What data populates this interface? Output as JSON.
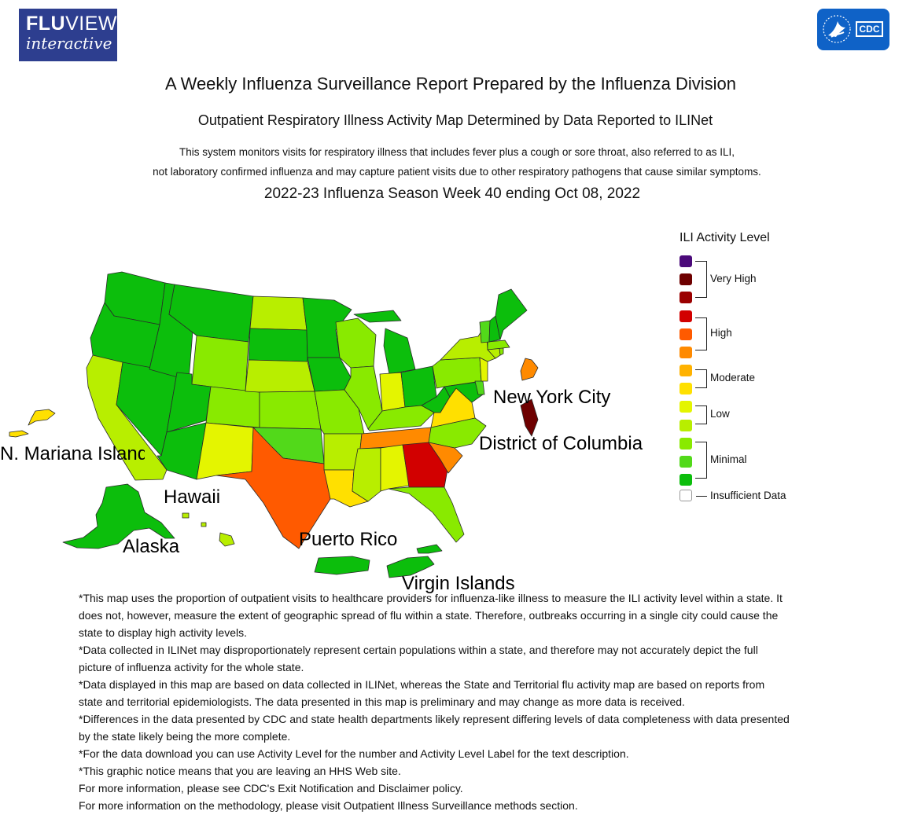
{
  "logos": {
    "fluview_line1_bold": "FLU",
    "fluview_line1_rest": "VIEW",
    "fluview_line2": "interactive",
    "cdc_text": "CDC",
    "cdc_icon": "hhs-eagle-icon"
  },
  "header": {
    "title": "A Weekly Influenza Surveillance Report Prepared by the Influenza Division",
    "subtitle": "Outpatient Respiratory Illness Activity Map Determined by Data Reported to ILINet",
    "description_line1": "This system monitors visits for respiratory illness that includes fever plus a cough or sore throat, also referred to as ILI,",
    "description_line2": "not laboratory confirmed influenza and may capture patient visits due to other respiratory pathogens that cause similar symptoms.",
    "week": "2022-23 Influenza Season Week 40 ending Oct 08, 2022"
  },
  "legend": {
    "title": "ILI Activity Level",
    "swatches": [
      {
        "level": 13,
        "color": "#4b0a7a"
      },
      {
        "level": 12,
        "color": "#6e0000"
      },
      {
        "level": 11,
        "color": "#9b0000"
      },
      {
        "level": 10,
        "color": "#d20000"
      },
      {
        "level": 9,
        "color": "#ff5a00"
      },
      {
        "level": 8,
        "color": "#ff8a00"
      },
      {
        "level": 7,
        "color": "#ffb200"
      },
      {
        "level": 6,
        "color": "#ffe000"
      },
      {
        "level": 5,
        "color": "#e4f500"
      },
      {
        "level": 4,
        "color": "#b8ee00"
      },
      {
        "level": 3,
        "color": "#89ea00"
      },
      {
        "level": 2,
        "color": "#52d91a"
      },
      {
        "level": 1,
        "color": "#0cbe0c"
      }
    ],
    "categories": [
      "Very High",
      "High",
      "Moderate",
      "Low",
      "Minimal"
    ],
    "insufficient_label": "Insufficient Data",
    "insufficient_color": "#ffffff"
  },
  "map_labels": {
    "nyc": "New York City",
    "dc": "District of Columbia",
    "mariana": "N. Mariana Islands",
    "hawaii": "Hawaii",
    "alaska": "Alaska",
    "puerto_rico": "Puerto Rico",
    "virgin_islands": "Virgin Islands"
  },
  "activity_levels": {
    "WA": 1,
    "OR": 1,
    "CA": 4,
    "NV": 1,
    "ID": 1,
    "MT": 1,
    "WY": 3,
    "UT": 1,
    "AZ": 1,
    "CO": 3,
    "NM": 5,
    "ND": 4,
    "SD": 1,
    "NE": 4,
    "KS": 3,
    "OK": 2,
    "TX": 9,
    "MN": 1,
    "IA": 1,
    "MO": 3,
    "AR": 4,
    "LA": 6,
    "WI": 3,
    "IL": 3,
    "MS": 4,
    "MI": 1,
    "IN": 5,
    "KY": 3,
    "TN": 8,
    "AL": 5,
    "GA": 10,
    "FL": 3,
    "OH": 1,
    "WV": 1,
    "VA": 6,
    "NC": 3,
    "SC": 8,
    "PA": 3,
    "NY": 4,
    "NJ": 5,
    "DE": 2,
    "MD": 1,
    "CT": 4,
    "RI": 3,
    "MA": 3,
    "VT": 2,
    "NH": 1,
    "ME": 1,
    "NYC": 8,
    "DC": 12,
    "AK": 1,
    "HI": 4,
    "MP": 6,
    "PR": 1,
    "VI": 1
  },
  "notes": [
    "*This map uses the proportion of outpatient visits to healthcare providers for influenza-like illness to measure the ILI activity level within a state. It does not, however, measure the extent of geographic spread of flu within a state. Therefore, outbreaks occurring in a single city could cause the state to display high activity levels.",
    "*Data collected in ILINet may disproportionately represent certain populations within a state, and therefore may not accurately depict the full picture of influenza activity for the whole state.",
    "*Data displayed in this map are based on data collected in ILINet, whereas the State and Territorial flu activity map are based on reports from state and territorial epidemiologists. The data presented in this map is preliminary and may change as more data is received.",
    "*Differences in the data presented by CDC and state health departments likely represent differing levels of data completeness with data presented by the state likely being the more complete.",
    "*For the data download you can use Activity Level for the number and Activity Level Label for the text description.",
    "*This graphic notice means that you are leaving an HHS Web site.",
    "For more information, please see CDC's Exit Notification and Disclaimer policy.",
    "For more information on the methodology, please visit Outpatient Illness Surveillance methods section."
  ]
}
